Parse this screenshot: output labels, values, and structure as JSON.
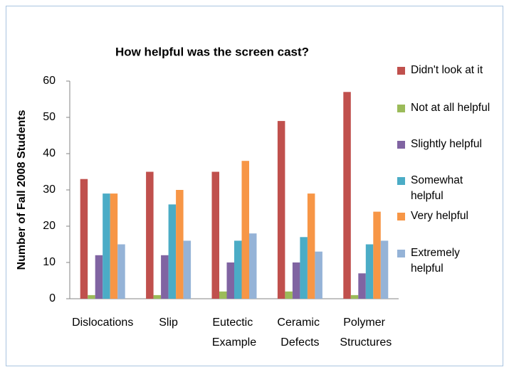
{
  "chart_data": {
    "type": "bar",
    "title": "How helpful was the screen cast?",
    "y_label": "Number of Fall 2008 Students",
    "categories": [
      "Dislocations",
      "Slip",
      "Eutectic Example",
      "Ceramic Defects",
      "Polymer Structures"
    ],
    "series": [
      {
        "name": "Didn't look at it",
        "color": "#c0504d",
        "values": [
          33,
          35,
          35,
          49,
          57
        ]
      },
      {
        "name": "Not at all helpful",
        "color": "#9bbb59",
        "values": [
          1,
          1,
          2,
          2,
          1
        ]
      },
      {
        "name": "Slightly helpful",
        "color": "#8064a2",
        "values": [
          12,
          12,
          10,
          10,
          7
        ]
      },
      {
        "name": "Somewhat helpful",
        "color": "#4bacc6",
        "values": [
          29,
          26,
          16,
          17,
          15
        ]
      },
      {
        "name": "Very helpful",
        "color": "#f79646",
        "values": [
          29,
          30,
          38,
          29,
          24
        ]
      },
      {
        "name": "Extremely helpful",
        "color": "#95b3d7",
        "values": [
          15,
          16,
          18,
          13,
          16
        ]
      }
    ],
    "ylim": [
      0,
      60
    ],
    "yticks": [
      0,
      10,
      20,
      30,
      40,
      50,
      60
    ],
    "grid": false,
    "legend": "right"
  }
}
